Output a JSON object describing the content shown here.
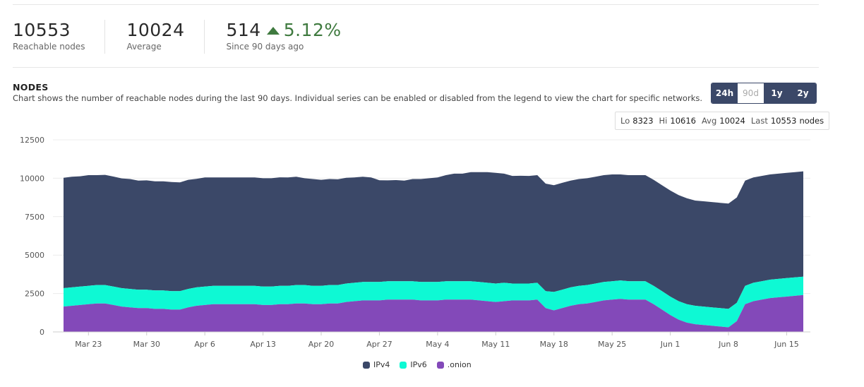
{
  "stats": [
    {
      "value": "10553",
      "label": "Reachable nodes"
    },
    {
      "value": "10024",
      "label": "Average"
    },
    {
      "value": "514",
      "change": "5.12%",
      "label": "Since 90 days ago"
    }
  ],
  "section": {
    "title": "NODES",
    "description": "Chart shows the number of reachable nodes during the last 90 days. Individual series can be enabled or disabled from the legend to view the chart for specific networks."
  },
  "range_buttons": [
    {
      "label": "24h",
      "active": true
    },
    {
      "label": "90d",
      "active": false
    },
    {
      "label": "1y",
      "active": true
    },
    {
      "label": "2y",
      "active": true
    }
  ],
  "summary": {
    "lo_label": "Lo",
    "lo": "8323",
    "hi_label": "Hi",
    "hi": "10616",
    "avg_label": "Avg",
    "avg": "10024",
    "last_label": "Last",
    "last": "10553",
    "unit": "nodes"
  },
  "colors": {
    "ipv4": "#3b4868",
    "ipv6": "#0ef9d4",
    "onion": "#8349b9",
    "trend_up": "#3f7a3f"
  },
  "chart_data": {
    "type": "area",
    "stacked": true,
    "x_start": "Mar 20",
    "x_tick_labels": [
      "Mar 23",
      "Mar 30",
      "Apr 6",
      "Apr 13",
      "Apr 20",
      "Apr 27",
      "May 4",
      "May 11",
      "May 18",
      "May 25",
      "Jun 1",
      "Jun 8",
      "Jun 15"
    ],
    "yticks": [
      0,
      2500,
      5000,
      7500,
      10000,
      12500
    ],
    "ylim": [
      0,
      12500
    ],
    "legend_position": "bottom",
    "series": [
      {
        "name": "IPv4",
        "values": [
          7180,
          7200,
          7180,
          7200,
          7150,
          7170,
          7160,
          7140,
          7150,
          7100,
          7110,
          7100,
          7100,
          7100,
          7080,
          7100,
          7060,
          7100,
          7050,
          7050,
          7050,
          7050,
          7050,
          7050,
          7050,
          7050,
          7060,
          7050,
          7050,
          6950,
          6950,
          6900,
          6900,
          6880,
          6880,
          6850,
          6850,
          6800,
          6620,
          6560,
          6580,
          6550,
          6650,
          6700,
          6750,
          6800,
          6900,
          7000,
          7000,
          7100,
          7150,
          7200,
          7200,
          7100,
          7000,
          7010,
          7000,
          7000,
          7000,
          6950,
          6950,
          6950,
          6950,
          6950,
          6950,
          6950,
          6950,
          6900,
          6900,
          6900,
          6900,
          6900,
          6900,
          6900,
          6900,
          6900,
          6850,
          6850,
          6850,
          6850,
          6850,
          6850,
          6850,
          6850,
          6850,
          6850,
          6850,
          6850,
          6850,
          6850
        ]
      },
      {
        "name": "IPv6",
        "values": [
          1200,
          1200,
          1200,
          1200,
          1200,
          1200,
          1200,
          1200,
          1200,
          1200,
          1200,
          1200,
          1200,
          1200,
          1200,
          1200,
          1200,
          1200,
          1200,
          1200,
          1200,
          1200,
          1200,
          1200,
          1200,
          1200,
          1200,
          1200,
          1200,
          1200,
          1200,
          1200,
          1200,
          1200,
          1200,
          1200,
          1200,
          1200,
          1200,
          1200,
          1200,
          1200,
          1200,
          1200,
          1200,
          1200,
          1200,
          1200,
          1200,
          1200,
          1200,
          1200,
          1200,
          1200,
          1100,
          1100,
          1100,
          1100,
          1100,
          1200,
          1200,
          1200,
          1200,
          1200,
          1200,
          1200,
          1200,
          1200,
          1200,
          1200,
          1200,
          1200,
          1200,
          1200,
          1200,
          1200,
          1200,
          1200,
          1200,
          1200,
          1200,
          1200,
          1200,
          1200,
          1200,
          1200,
          1200,
          1200,
          1200,
          1200
        ]
      },
      {
        "name": ".onion",
        "values": [
          1650,
          1700,
          1750,
          1800,
          1850,
          1850,
          1750,
          1650,
          1600,
          1550,
          1550,
          1500,
          1500,
          1450,
          1450,
          1600,
          1700,
          1750,
          1800,
          1800,
          1800,
          1800,
          1800,
          1800,
          1750,
          1750,
          1800,
          1800,
          1850,
          1850,
          1800,
          1800,
          1850,
          1850,
          1950,
          2000,
          2050,
          2050,
          2050,
          2100,
          2100,
          2100,
          2100,
          2050,
          2050,
          2050,
          2100,
          2100,
          2100,
          2100,
          2050,
          2000,
          1950,
          2000,
          2050,
          2050,
          2050,
          2100,
          1550,
          1400,
          1550,
          1700,
          1800,
          1850,
          1950,
          2050,
          2100,
          2150,
          2100,
          2100,
          2100,
          1800,
          1450,
          1100,
          800,
          600,
          500,
          450,
          400,
          350,
          300,
          700,
          1800,
          2000,
          2100,
          2200,
          2250,
          2300,
          2350,
          2400
        ]
      }
    ]
  },
  "legend": [
    {
      "name": "IPv4"
    },
    {
      "name": "IPv6"
    },
    {
      "name": ".onion"
    }
  ]
}
